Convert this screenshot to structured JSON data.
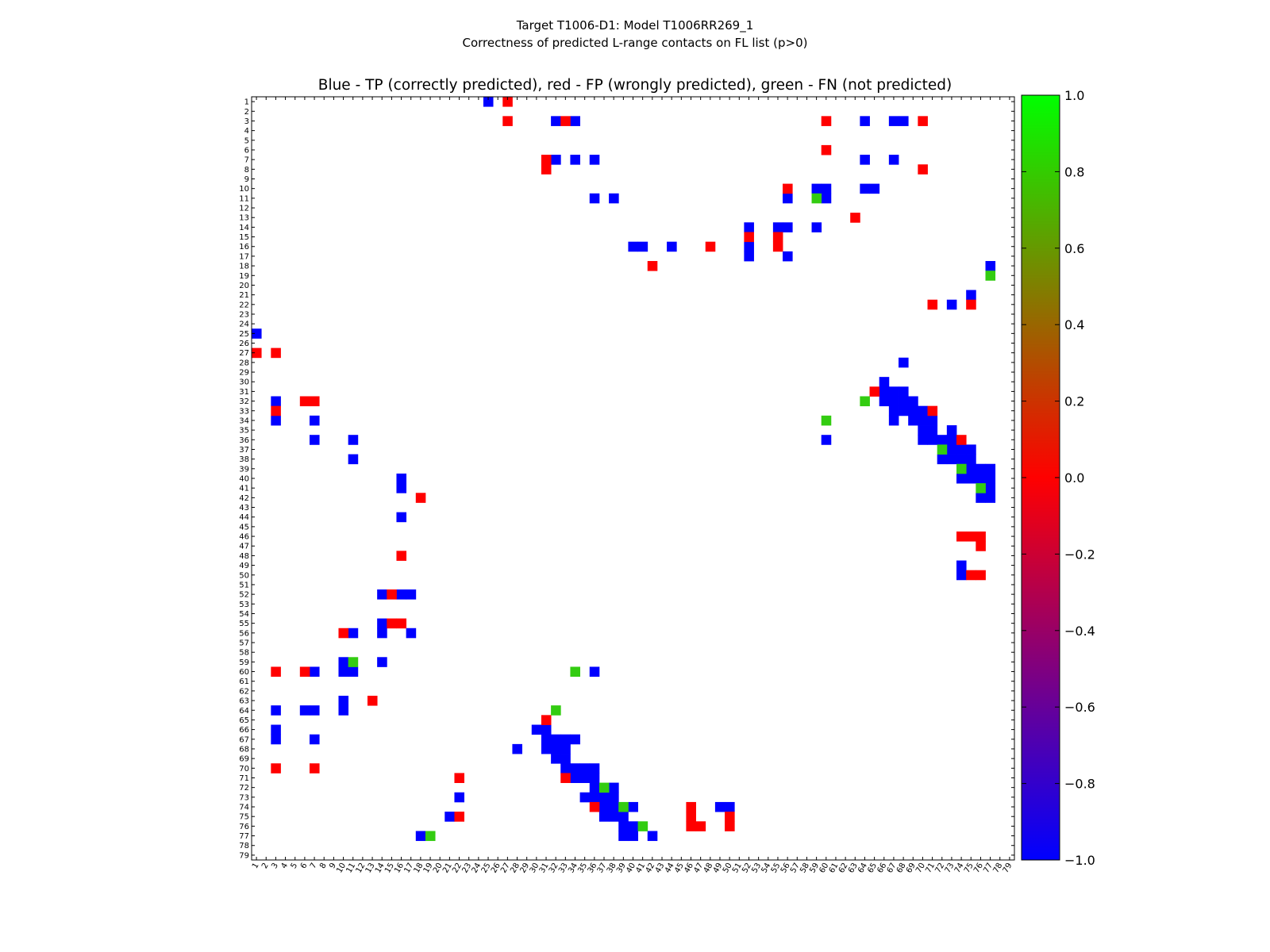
{
  "chart_data": {
    "type": "heatmap",
    "figure_title_lines": [
      "Target T1006-D1: Model T1006RR269_1",
      "Correctness of predicted L-range contacts on FL list (p>0)"
    ],
    "axes_title": "Blue - TP (correctly predicted), red - FP (wrongly predicted), green - FN (not predicted)",
    "x_ticks": [
      "1",
      "2",
      "3",
      "4",
      "5",
      "6",
      "7",
      "8",
      "9",
      "10",
      "11",
      "12",
      "13",
      "14",
      "15",
      "16",
      "17",
      "18",
      "19",
      "20",
      "21",
      "22",
      "23",
      "24",
      "25",
      "26",
      "27",
      "28",
      "29",
      "30",
      "31",
      "32",
      "33",
      "34",
      "35",
      "36",
      "37",
      "38",
      "39",
      "40",
      "41",
      "42",
      "43",
      "44",
      "45",
      "46",
      "47",
      "48",
      "49",
      "50",
      "51",
      "52",
      "53",
      "54",
      "55",
      "56",
      "57",
      "58",
      "59",
      "60",
      "61",
      "62",
      "63",
      "64",
      "65",
      "66",
      "67",
      "68",
      "69",
      "70",
      "71",
      "72",
      "73",
      "74",
      "75",
      "76",
      "77",
      "78",
      "79"
    ],
    "y_ticks": [
      "1",
      "2",
      "3",
      "4",
      "5",
      "6",
      "7",
      "8",
      "9",
      "10",
      "11",
      "12",
      "13",
      "14",
      "15",
      "16",
      "17",
      "18",
      "19",
      "20",
      "21",
      "22",
      "23",
      "24",
      "25",
      "26",
      "27",
      "28",
      "29",
      "30",
      "31",
      "32",
      "33",
      "34",
      "35",
      "36",
      "37",
      "38",
      "39",
      "40",
      "41",
      "42",
      "43",
      "44",
      "45",
      "46",
      "47",
      "48",
      "49",
      "50",
      "51",
      "52",
      "53",
      "54",
      "55",
      "56",
      "57",
      "58",
      "59",
      "60",
      "61",
      "62",
      "63",
      "64",
      "65",
      "66",
      "67",
      "68",
      "69",
      "70",
      "71",
      "72",
      "73",
      "74",
      "75",
      "76",
      "77",
      "78",
      "79"
    ],
    "colorbar": {
      "min": -1.0,
      "max": 1.0,
      "ticks": [
        "1.0",
        "0.8",
        "0.6",
        "0.4",
        "0.2",
        "0.0",
        "−0.2",
        "−0.4",
        "−0.6",
        "−0.8",
        "−1.0"
      ],
      "colormap_stops": [
        {
          "value": -1.0,
          "color": "#0000ff"
        },
        {
          "value": 0.0,
          "color": "#ff0000"
        },
        {
          "value": 1.0,
          "color": "#00ff00"
        }
      ]
    },
    "category_values": {
      "TP": -1,
      "FP": 0,
      "FN": 1
    },
    "category_colors": {
      "TP": "#0000ff",
      "FP": "#ff0000",
      "FN": "#33cc11"
    },
    "cells": {
      "TP": [
        [
          1,
          25
        ],
        [
          3,
          32
        ],
        [
          3,
          34
        ],
        [
          3,
          64
        ],
        [
          3,
          67
        ],
        [
          3,
          68
        ],
        [
          7,
          32
        ],
        [
          7,
          34
        ],
        [
          7,
          36
        ],
        [
          7,
          64
        ],
        [
          7,
          67
        ],
        [
          10,
          59
        ],
        [
          10,
          60
        ],
        [
          10,
          64
        ],
        [
          10,
          65
        ],
        [
          11,
          36
        ],
        [
          11,
          38
        ],
        [
          11,
          56
        ],
        [
          11,
          60
        ],
        [
          14,
          52
        ],
        [
          14,
          55
        ],
        [
          14,
          56
        ],
        [
          14,
          59
        ],
        [
          16,
          40
        ],
        [
          16,
          41
        ],
        [
          16,
          44
        ],
        [
          16,
          52
        ],
        [
          17,
          52
        ],
        [
          17,
          56
        ],
        [
          18,
          77
        ],
        [
          21,
          75
        ],
        [
          22,
          73
        ],
        [
          25,
          1
        ],
        [
          28,
          68
        ],
        [
          30,
          66
        ],
        [
          31,
          66
        ],
        [
          31,
          67
        ],
        [
          31,
          68
        ],
        [
          32,
          3
        ],
        [
          32,
          66
        ],
        [
          32,
          67
        ],
        [
          32,
          68
        ],
        [
          32,
          69
        ],
        [
          33,
          67
        ],
        [
          33,
          68
        ],
        [
          33,
          69
        ],
        [
          33,
          70
        ],
        [
          34,
          3
        ],
        [
          34,
          7
        ],
        [
          34,
          67
        ],
        [
          34,
          69
        ],
        [
          34,
          70
        ],
        [
          34,
          71
        ],
        [
          35,
          70
        ],
        [
          35,
          71
        ],
        [
          35,
          73
        ],
        [
          36,
          7
        ],
        [
          36,
          11
        ],
        [
          36,
          60
        ],
        [
          36,
          70
        ],
        [
          36,
          71
        ],
        [
          36,
          72
        ],
        [
          36,
          73
        ],
        [
          37,
          73
        ],
        [
          37,
          74
        ],
        [
          37,
          75
        ],
        [
          38,
          11
        ],
        [
          38,
          72
        ],
        [
          38,
          73
        ],
        [
          38,
          74
        ],
        [
          38,
          75
        ],
        [
          39,
          75
        ],
        [
          39,
          76
        ],
        [
          39,
          77
        ],
        [
          40,
          16
        ],
        [
          40,
          74
        ],
        [
          40,
          75
        ],
        [
          40,
          76
        ],
        [
          40,
          77
        ],
        [
          41,
          16
        ],
        [
          41,
          77
        ],
        [
          42,
          76
        ],
        [
          42,
          77
        ],
        [
          44,
          16
        ],
        [
          49,
          74
        ],
        [
          50,
          74
        ],
        [
          52,
          14
        ],
        [
          52,
          16
        ],
        [
          52,
          17
        ],
        [
          55,
          14
        ],
        [
          56,
          11
        ],
        [
          56,
          14
        ],
        [
          56,
          17
        ],
        [
          59,
          10
        ],
        [
          59,
          14
        ],
        [
          60,
          7
        ],
        [
          60,
          10
        ],
        [
          60,
          11
        ],
        [
          60,
          36
        ],
        [
          63,
          10
        ],
        [
          64,
          3
        ],
        [
          64,
          6
        ],
        [
          64,
          7
        ],
        [
          64,
          10
        ],
        [
          66,
          3
        ],
        [
          66,
          30
        ],
        [
          66,
          31
        ],
        [
          67,
          3
        ],
        [
          67,
          7
        ],
        [
          67,
          31
        ],
        [
          67,
          32
        ],
        [
          67,
          33
        ],
        [
          67,
          34
        ],
        [
          68,
          28
        ],
        [
          68,
          31
        ],
        [
          68,
          32
        ],
        [
          68,
          33
        ],
        [
          69,
          32
        ],
        [
          69,
          33
        ],
        [
          70,
          33
        ],
        [
          70,
          34
        ],
        [
          70,
          35
        ],
        [
          70,
          36
        ],
        [
          71,
          34
        ],
        [
          71,
          35
        ],
        [
          71,
          36
        ],
        [
          72,
          36
        ],
        [
          72,
          38
        ],
        [
          73,
          22
        ],
        [
          73,
          35
        ],
        [
          73,
          36
        ],
        [
          73,
          37
        ],
        [
          73,
          38
        ],
        [
          74,
          37
        ],
        [
          74,
          38
        ],
        [
          74,
          40
        ],
        [
          74,
          49
        ],
        [
          74,
          50
        ],
        [
          75,
          21
        ],
        [
          75,
          37
        ],
        [
          75,
          38
        ],
        [
          75,
          39
        ],
        [
          76,
          39
        ],
        [
          76,
          40
        ],
        [
          77,
          18
        ],
        [
          77,
          39
        ],
        [
          77,
          40
        ],
        [
          77,
          42
        ]
      ],
      "FP": [
        [
          1,
          27
        ],
        [
          3,
          27
        ],
        [
          3,
          33
        ],
        [
          3,
          60
        ],
        [
          3,
          70
        ],
        [
          6,
          60
        ],
        [
          7,
          31
        ],
        [
          8,
          31
        ],
        [
          8,
          70
        ],
        [
          10,
          56
        ],
        [
          13,
          63
        ],
        [
          15,
          52
        ],
        [
          15,
          55
        ],
        [
          16,
          48
        ],
        [
          16,
          55
        ],
        [
          18,
          42
        ],
        [
          22,
          71
        ],
        [
          22,
          75
        ],
        [
          27,
          1
        ],
        [
          27,
          3
        ],
        [
          31,
          65
        ],
        [
          32,
          6
        ],
        [
          32,
          7
        ],
        [
          33,
          3
        ],
        [
          33,
          71
        ],
        [
          36,
          74
        ],
        [
          42,
          18
        ],
        [
          46,
          74
        ],
        [
          46,
          75
        ],
        [
          46,
          76
        ],
        [
          47,
          76
        ],
        [
          48,
          16
        ],
        [
          50,
          75
        ],
        [
          50,
          76
        ],
        [
          52,
          15
        ],
        [
          55,
          15
        ],
        [
          55,
          16
        ],
        [
          56,
          10
        ],
        [
          60,
          3
        ],
        [
          60,
          6
        ],
        [
          63,
          13
        ],
        [
          65,
          31
        ],
        [
          70,
          3
        ],
        [
          70,
          7
        ],
        [
          71,
          22
        ],
        [
          71,
          33
        ],
        [
          74,
          36
        ],
        [
          74,
          46
        ],
        [
          75,
          22
        ],
        [
          75,
          46
        ],
        [
          75,
          50
        ],
        [
          76,
          46
        ],
        [
          76,
          47
        ],
        [
          76,
          50
        ]
      ],
      "FN": [
        [
          11,
          59
        ],
        [
          19,
          77
        ],
        [
          32,
          64
        ],
        [
          34,
          60
        ],
        [
          37,
          72
        ],
        [
          39,
          74
        ],
        [
          41,
          76
        ],
        [
          59,
          11
        ],
        [
          60,
          34
        ],
        [
          64,
          32
        ],
        [
          72,
          37
        ],
        [
          74,
          39
        ],
        [
          76,
          41
        ],
        [
          77,
          19
        ]
      ]
    }
  }
}
